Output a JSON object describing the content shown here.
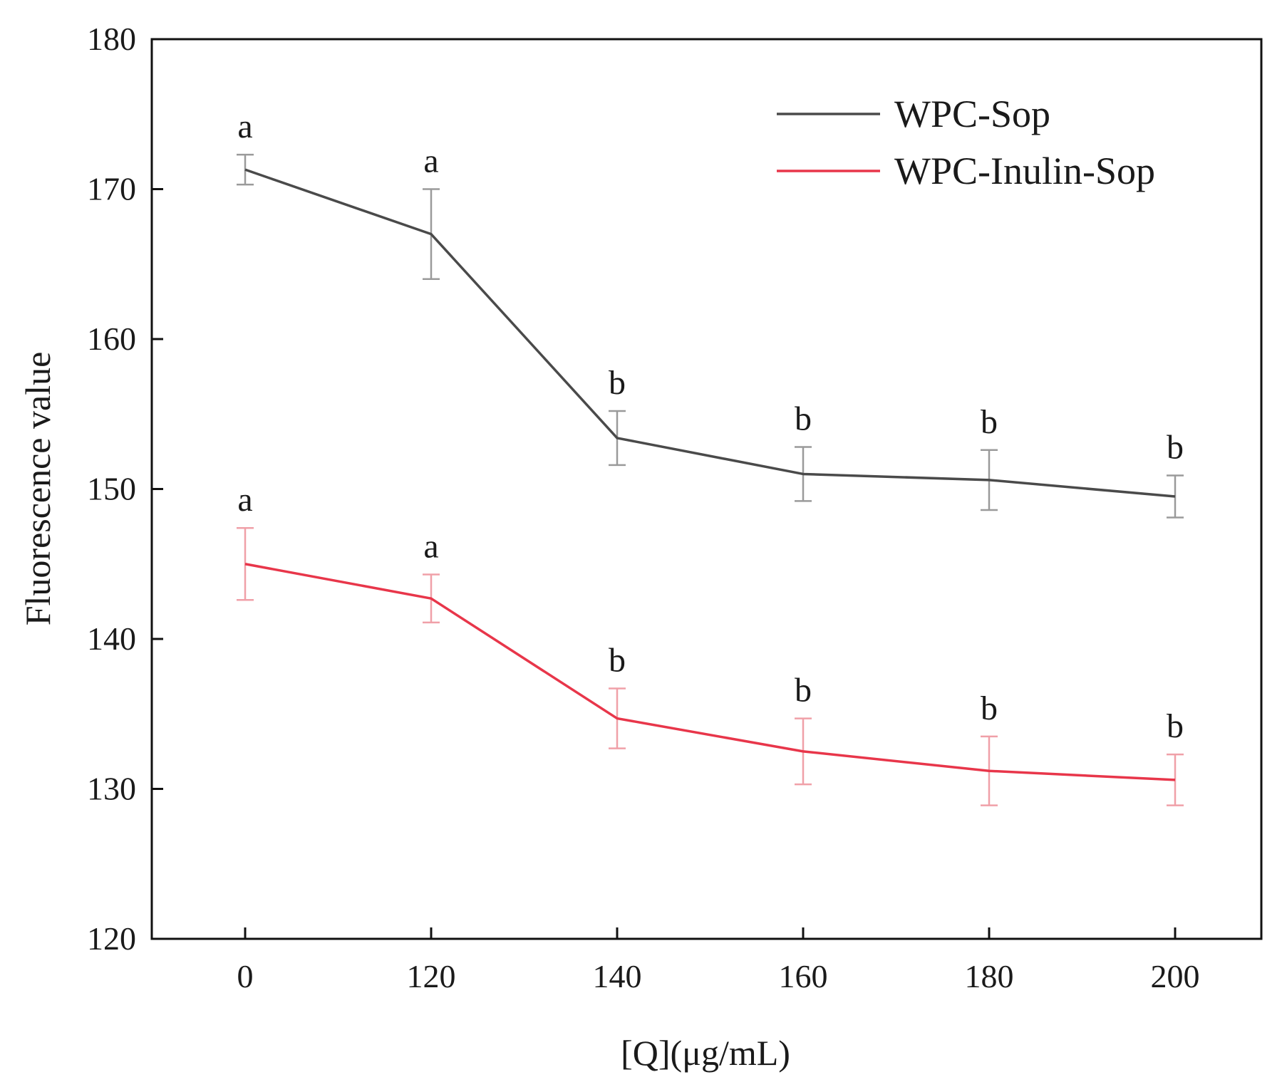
{
  "chart_data": {
    "type": "line",
    "title": "",
    "xlabel": "[Q](μg/mL)",
    "ylabel": "Fluorescence value",
    "categories": [
      "0",
      "120",
      "140",
      "160",
      "180",
      "200"
    ],
    "ylim": [
      120,
      180
    ],
    "yticks": [
      120,
      130,
      140,
      150,
      160,
      170,
      180
    ],
    "grid": false,
    "legend_position": "top-right",
    "series": [
      {
        "name": "WPC-Sop",
        "color": "#4a4a4a",
        "error_color": "#9a9a9a",
        "values": [
          171.3,
          167.0,
          153.4,
          151.0,
          150.6,
          149.5
        ],
        "errors": [
          1.0,
          3.0,
          1.8,
          1.8,
          2.0,
          1.4
        ],
        "labels": [
          "a",
          "a",
          "b",
          "b",
          "b",
          "b"
        ]
      },
      {
        "name": "WPC-Inulin-Sop",
        "color": "#e8364a",
        "error_color": "#f0a0a8",
        "values": [
          145.0,
          142.7,
          134.7,
          132.5,
          131.2,
          130.6
        ],
        "errors": [
          2.4,
          1.6,
          2.0,
          2.2,
          2.3,
          1.7
        ],
        "labels": [
          "a",
          "a",
          "b",
          "b",
          "b",
          "b"
        ]
      }
    ]
  }
}
